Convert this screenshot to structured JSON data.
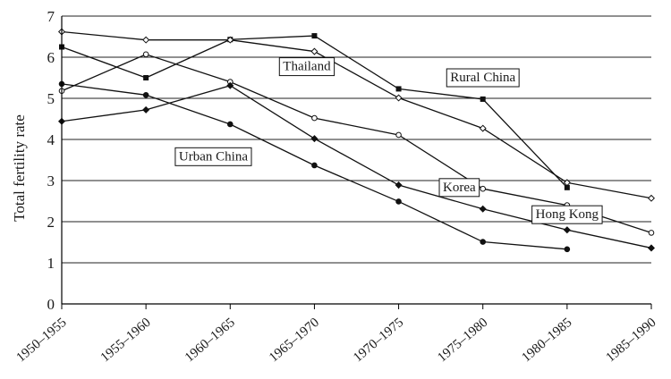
{
  "chart_data": {
    "type": "line",
    "ylabel": "Total fertility rate",
    "xlabel": "",
    "ylim": [
      0,
      7
    ],
    "yticks": [
      0,
      1,
      2,
      3,
      4,
      5,
      6,
      7
    ],
    "grid": true,
    "categories": [
      "1950–1955",
      "1955–1960",
      "1960–1965",
      "1965–1970",
      "1970–1975",
      "1975–1980",
      "1980–1985",
      "1985–1990"
    ],
    "series": [
      {
        "name": "Rural China",
        "marker": "square",
        "values": [
          6.25,
          5.5,
          6.43,
          6.52,
          5.23,
          4.98,
          2.83,
          null
        ]
      },
      {
        "name": "Thailand",
        "marker": "open-diamond",
        "values": [
          6.62,
          6.42,
          6.42,
          6.14,
          5.01,
          4.27,
          2.95,
          2.57
        ]
      },
      {
        "name": "Korea",
        "marker": "open-circle",
        "values": [
          5.18,
          6.07,
          5.4,
          4.52,
          4.11,
          2.8,
          2.4,
          1.73
        ]
      },
      {
        "name": "Hong Kong",
        "marker": "diamond",
        "values": [
          4.44,
          4.72,
          5.31,
          4.02,
          2.89,
          2.31,
          1.8,
          1.36
        ]
      },
      {
        "name": "Urban China",
        "marker": "circle",
        "values": [
          5.35,
          5.08,
          4.37,
          3.37,
          2.49,
          1.51,
          1.33,
          null
        ]
      }
    ],
    "labels": [
      "Thailand",
      "Rural China",
      "Urban China",
      "Korea",
      "Hong Kong"
    ]
  }
}
